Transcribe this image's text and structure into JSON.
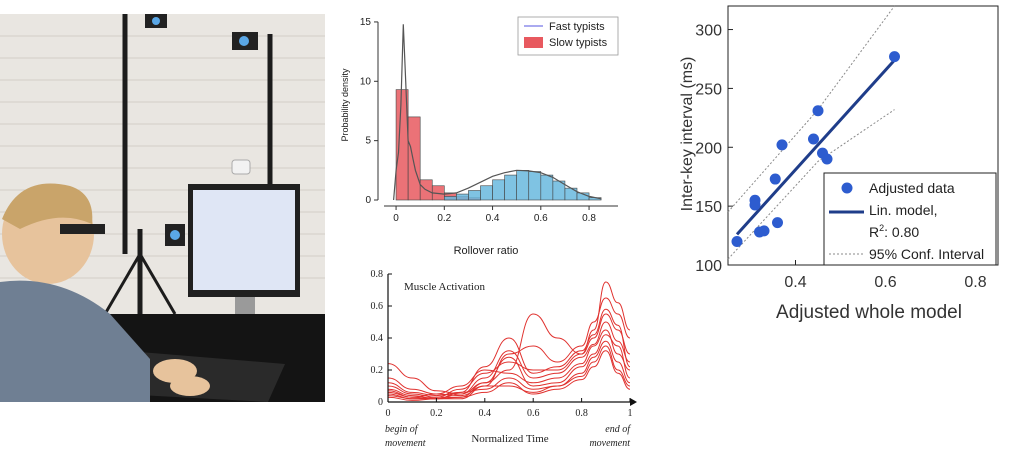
{
  "photo": {
    "description_icon": "lab-photo-icon"
  },
  "charts": {
    "chart_data": [
      {
        "type": "bar",
        "id": "rollover-histogram",
        "title": "",
        "xlabel": "Rollover ratio",
        "ylabel": "Probability density",
        "xlim": [
          -0.05,
          0.92
        ],
        "ylim": [
          0,
          15.5
        ],
        "xticks": [
          "0",
          "0.2",
          "0.4",
          "0.6",
          "0.8"
        ],
        "xtick_values": [
          0,
          0.2,
          0.4,
          0.6,
          0.8
        ],
        "yticks": [
          "0",
          "5",
          "10",
          "15"
        ],
        "ytick_values": [
          0,
          5,
          10,
          15
        ],
        "legend": [
          "Fast typists",
          "Slow typists"
        ],
        "legend_position": "top-right",
        "bin_width": 0.05,
        "series": [
          {
            "name": "Slow typists",
            "color": "#e8595f",
            "bin_starts": [
              0,
              0.05,
              0.1,
              0.15,
              0.2,
              0.25,
              0.3
            ],
            "values": [
              9.3,
              7.0,
              1.7,
              1.2,
              0.6,
              0.3,
              0.2
            ]
          },
          {
            "name": "Fast typists",
            "color": "#68b9de",
            "bin_starts": [
              0.2,
              0.25,
              0.3,
              0.35,
              0.4,
              0.45,
              0.5,
              0.55,
              0.6,
              0.65,
              0.7,
              0.75,
              0.8
            ],
            "values": [
              0.3,
              0.5,
              0.8,
              1.2,
              1.7,
              2.1,
              2.5,
              2.4,
              2.1,
              1.6,
              1.0,
              0.6,
              0.2
            ]
          }
        ],
        "density_curve": {
          "x": [
            -0.01,
            0.0,
            0.01,
            0.02,
            0.03,
            0.04,
            0.05,
            0.06,
            0.07,
            0.08,
            0.1,
            0.12,
            0.15,
            0.2,
            0.25,
            0.3,
            0.35,
            0.4,
            0.45,
            0.5,
            0.55,
            0.6,
            0.65,
            0.7,
            0.75,
            0.8,
            0.85
          ],
          "y": [
            0.0,
            2.5,
            4.0,
            8.0,
            14.8,
            10.0,
            5.0,
            4.5,
            3.5,
            2.5,
            1.3,
            0.9,
            0.6,
            0.5,
            0.6,
            1.0,
            1.5,
            2.0,
            2.3,
            2.5,
            2.45,
            2.3,
            1.9,
            1.3,
            0.7,
            0.3,
            0.1
          ]
        }
      },
      {
        "type": "line",
        "id": "muscle-activation",
        "title": "Muscle Activation",
        "xlabel": "Normalized Time",
        "x_start_label": [
          "begin of",
          "movement"
        ],
        "x_end_label": [
          "end of",
          "movement"
        ],
        "xlim": [
          0,
          1
        ],
        "ylim": [
          0,
          0.8
        ],
        "xticks": [
          "0",
          "0.2",
          "0.4",
          "0.6",
          "0.8",
          "1"
        ],
        "xtick_values": [
          0,
          0.2,
          0.4,
          0.6,
          0.8,
          1
        ],
        "yticks": [
          "0",
          "0.2",
          "0.4",
          "0.6",
          "0.8"
        ],
        "ytick_values": [
          0,
          0.2,
          0.4,
          0.6,
          0.8
        ],
        "line_color": "#e0322f",
        "x": [
          0,
          0.1,
          0.2,
          0.3,
          0.4,
          0.5,
          0.6,
          0.7,
          0.8,
          0.85,
          0.9,
          0.95,
          1.0
        ],
        "series": [
          {
            "values": [
              0.24,
              0.15,
              0.07,
              0.05,
              0.12,
              0.2,
              0.55,
              0.4,
              0.3,
              0.45,
              0.75,
              0.62,
              0.45
            ]
          },
          {
            "values": [
              0.15,
              0.08,
              0.05,
              0.04,
              0.1,
              0.3,
              0.35,
              0.25,
              0.35,
              0.5,
              0.65,
              0.55,
              0.4
            ]
          },
          {
            "values": [
              0.1,
              0.05,
              0.03,
              0.08,
              0.18,
              0.25,
              0.2,
              0.2,
              0.3,
              0.4,
              0.55,
              0.45,
              0.3
            ]
          },
          {
            "values": [
              0.08,
              0.04,
              0.02,
              0.05,
              0.15,
              0.32,
              0.15,
              0.18,
              0.28,
              0.36,
              0.5,
              0.38,
              0.25
            ]
          },
          {
            "values": [
              0.06,
              0.03,
              0.05,
              0.1,
              0.2,
              0.18,
              0.12,
              0.15,
              0.24,
              0.35,
              0.45,
              0.3,
              0.2
            ]
          },
          {
            "values": [
              0.05,
              0.02,
              0.03,
              0.03,
              0.12,
              0.28,
              0.1,
              0.12,
              0.22,
              0.3,
              0.42,
              0.35,
              0.15
            ]
          },
          {
            "values": [
              0.04,
              0.02,
              0.02,
              0.06,
              0.08,
              0.15,
              0.08,
              0.1,
              0.18,
              0.28,
              0.38,
              0.25,
              0.12
            ]
          },
          {
            "values": [
              0.03,
              0.01,
              0.02,
              0.02,
              0.1,
              0.1,
              0.06,
              0.1,
              0.16,
              0.25,
              0.35,
              0.2,
              0.1
            ]
          },
          {
            "values": [
              0.12,
              0.06,
              0.04,
              0.06,
              0.22,
              0.4,
              0.18,
              0.22,
              0.32,
              0.42,
              0.58,
              0.48,
              0.22
            ]
          },
          {
            "values": [
              0.07,
              0.03,
              0.02,
              0.03,
              0.06,
              0.12,
              0.05,
              0.08,
              0.14,
              0.22,
              0.32,
              0.18,
              0.08
            ]
          }
        ]
      },
      {
        "type": "scatter",
        "id": "interkey-vs-model",
        "title": "",
        "xlabel": "Adjusted whole model",
        "ylabel": "Inter-key interval (ms)",
        "xlim": [
          0.25,
          0.85
        ],
        "ylim": [
          100,
          320
        ],
        "xticks": [
          "0.4",
          "0.6",
          "0.8"
        ],
        "xtick_values": [
          0.4,
          0.6,
          0.8
        ],
        "yticks": [
          "100",
          "150",
          "200",
          "250",
          "300"
        ],
        "ytick_values": [
          100,
          150,
          200,
          250,
          300
        ],
        "point_color": "#2d5ccf",
        "line_color": "#1f3d8a",
        "points": {
          "x": [
            0.27,
            0.31,
            0.31,
            0.32,
            0.33,
            0.355,
            0.36,
            0.37,
            0.44,
            0.45,
            0.46,
            0.47,
            0.62
          ],
          "y": [
            120,
            155,
            151,
            128,
            129,
            173,
            136,
            202,
            207,
            231,
            195,
            190,
            277
          ]
        },
        "fit_line": {
          "x": [
            0.27,
            0.62
          ],
          "y": [
            126,
            274
          ]
        },
        "conf_upper": {
          "x": [
            0.25,
            0.45,
            0.62
          ],
          "y": [
            145,
            232,
            323
          ]
        },
        "conf_lower": {
          "x": [
            0.25,
            0.45,
            0.62
          ],
          "y": [
            105,
            188,
            232
          ]
        },
        "legend": {
          "data": "Adjusted data",
          "model_line1": "Lin. model,",
          "model_r2_prefix": "R",
          "model_r2_sup": "2",
          "model_r2_value": ": 0.80",
          "conf": "95% Conf. Interval"
        },
        "legend_position": "bottom-right"
      }
    ]
  }
}
